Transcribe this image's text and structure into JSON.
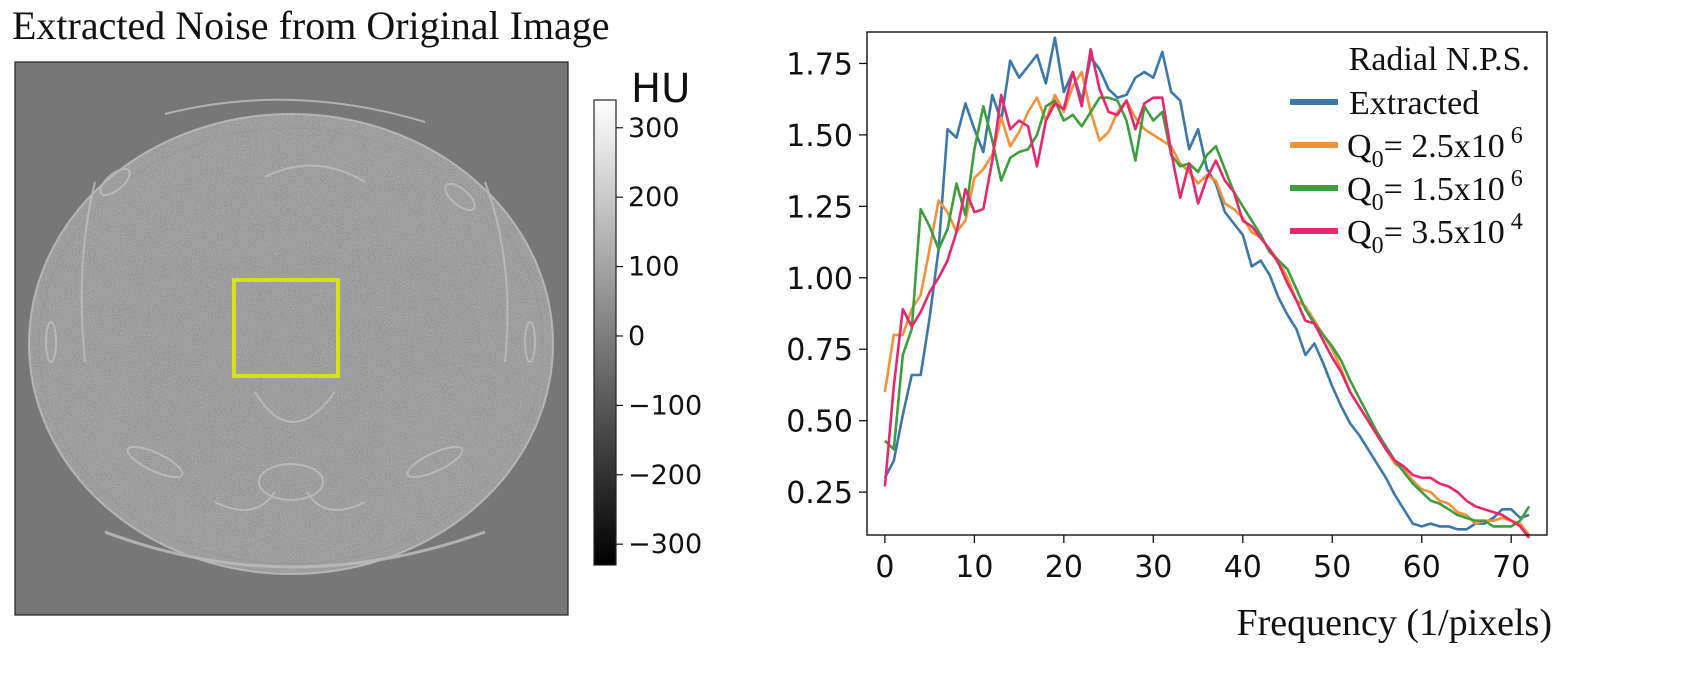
{
  "left_panel": {
    "title": "Extracted Noise from Original Image",
    "colorbar": {
      "unit": "HU",
      "ticks": [
        "300",
        "200",
        "100",
        "0",
        "−100",
        "−200",
        "−300"
      ],
      "tick_values": [
        300,
        200,
        100,
        0,
        -100,
        -200,
        -300
      ],
      "range": [
        -330,
        340
      ]
    },
    "roi_box_color": "#d4e21c",
    "background_color": "#777777"
  },
  "chart_data": {
    "type": "line",
    "title": "",
    "xlabel": "Frequency (1/pixels)",
    "ylabel": "",
    "xlim": [
      -2,
      74
    ],
    "ylim": [
      0.1,
      1.86
    ],
    "x_ticks": [
      0,
      10,
      20,
      30,
      40,
      50,
      60,
      70
    ],
    "y_ticks": [
      0.25,
      0.5,
      0.75,
      1.0,
      1.25,
      1.5,
      1.75
    ],
    "x_tick_labels": [
      "0",
      "10",
      "20",
      "30",
      "40",
      "50",
      "60",
      "70"
    ],
    "y_tick_labels": [
      "0.25",
      "0.50",
      "0.75",
      "1.00",
      "1.25",
      "1.50",
      "1.75"
    ],
    "legend": {
      "title": "Radial N.P.S.",
      "placement": "top-right",
      "entries": [
        {
          "label": "Extracted",
          "base": "",
          "sub": "",
          "sup": "",
          "color": "#3b77a8"
        },
        {
          "label": "",
          "base": "Q",
          "sub": "0",
          "mid": "= 2.5x10",
          "sup": "6",
          "color": "#f39237"
        },
        {
          "label": "",
          "base": "Q",
          "sub": "0",
          "mid": "= 1.5x10",
          "sup": "6",
          "color": "#3d9e3d"
        },
        {
          "label": "",
          "base": "Q",
          "sub": "0",
          "mid": "= 3.5x10",
          "sup": "4",
          "color": "#e8276f"
        }
      ]
    },
    "x": [
      0,
      1,
      2,
      3,
      4,
      5,
      6,
      7,
      8,
      9,
      10,
      11,
      12,
      13,
      14,
      15,
      16,
      17,
      18,
      19,
      20,
      21,
      22,
      23,
      24,
      25,
      26,
      27,
      28,
      29,
      30,
      31,
      32,
      33,
      34,
      35,
      36,
      37,
      38,
      39,
      40,
      41,
      42,
      43,
      44,
      45,
      46,
      47,
      48,
      49,
      50,
      51,
      52,
      53,
      54,
      55,
      56,
      57,
      58,
      59,
      60,
      61,
      62,
      63,
      64,
      65,
      66,
      67,
      68,
      69,
      70,
      71,
      72
    ],
    "series": [
      {
        "name": "Extracted",
        "color": "#3b77a8",
        "values": [
          0.3,
          0.36,
          0.52,
          0.66,
          0.66,
          0.86,
          1.1,
          1.52,
          1.49,
          1.61,
          1.52,
          1.44,
          1.64,
          1.55,
          1.76,
          1.7,
          1.74,
          1.78,
          1.68,
          1.84,
          1.65,
          1.72,
          1.62,
          1.77,
          1.73,
          1.66,
          1.63,
          1.64,
          1.7,
          1.72,
          1.7,
          1.79,
          1.65,
          1.62,
          1.45,
          1.52,
          1.38,
          1.33,
          1.23,
          1.19,
          1.15,
          1.04,
          1.06,
          1.01,
          0.93,
          0.87,
          0.82,
          0.73,
          0.77,
          0.7,
          0.62,
          0.55,
          0.49,
          0.45,
          0.4,
          0.35,
          0.3,
          0.24,
          0.19,
          0.14,
          0.13,
          0.14,
          0.13,
          0.13,
          0.12,
          0.12,
          0.14,
          0.14,
          0.16,
          0.19,
          0.19,
          0.16,
          0.17
        ]
      },
      {
        "name": "Q0= 2.5x10^6",
        "color": "#f39237",
        "values": [
          0.6,
          0.8,
          0.8,
          0.89,
          0.94,
          1.1,
          1.27,
          1.23,
          1.16,
          1.2,
          1.35,
          1.38,
          1.43,
          1.56,
          1.46,
          1.51,
          1.58,
          1.63,
          1.55,
          1.64,
          1.58,
          1.67,
          1.72,
          1.58,
          1.48,
          1.51,
          1.58,
          1.62,
          1.56,
          1.52,
          1.5,
          1.48,
          1.46,
          1.4,
          1.37,
          1.33,
          1.36,
          1.34,
          1.26,
          1.24,
          1.21,
          1.16,
          1.14,
          1.1,
          1.06,
          1.0,
          0.92,
          0.9,
          0.85,
          0.8,
          0.75,
          0.68,
          0.6,
          0.55,
          0.5,
          0.45,
          0.4,
          0.35,
          0.33,
          0.29,
          0.26,
          0.25,
          0.22,
          0.21,
          0.18,
          0.17,
          0.14,
          0.15,
          0.15,
          0.16,
          0.15,
          0.14,
          0.1
        ]
      },
      {
        "name": "Q0= 1.5x10^6",
        "color": "#3d9e3d",
        "values": [
          0.43,
          0.4,
          0.73,
          0.82,
          1.24,
          1.18,
          1.1,
          1.17,
          1.33,
          1.22,
          1.45,
          1.6,
          1.48,
          1.34,
          1.42,
          1.44,
          1.45,
          1.5,
          1.6,
          1.62,
          1.55,
          1.57,
          1.53,
          1.58,
          1.63,
          1.63,
          1.62,
          1.55,
          1.41,
          1.6,
          1.55,
          1.58,
          1.43,
          1.39,
          1.4,
          1.37,
          1.43,
          1.46,
          1.38,
          1.3,
          1.25,
          1.2,
          1.15,
          1.09,
          1.06,
          1.03,
          0.96,
          0.89,
          0.84,
          0.8,
          0.76,
          0.71,
          0.64,
          0.58,
          0.52,
          0.46,
          0.41,
          0.36,
          0.32,
          0.28,
          0.25,
          0.22,
          0.21,
          0.19,
          0.17,
          0.16,
          0.15,
          0.15,
          0.13,
          0.13,
          0.13,
          0.15,
          0.2
        ]
      },
      {
        "name": "Q0= 3.5x10^4",
        "color": "#e8276f",
        "values": [
          0.27,
          0.62,
          0.89,
          0.83,
          0.88,
          0.95,
          1.0,
          1.06,
          1.16,
          1.31,
          1.23,
          1.24,
          1.41,
          1.64,
          1.52,
          1.55,
          1.53,
          1.39,
          1.55,
          1.61,
          1.59,
          1.72,
          1.6,
          1.8,
          1.66,
          1.58,
          1.57,
          1.62,
          1.52,
          1.61,
          1.63,
          1.63,
          1.44,
          1.28,
          1.4,
          1.26,
          1.35,
          1.41,
          1.34,
          1.3,
          1.2,
          1.18,
          1.14,
          1.1,
          1.05,
          0.98,
          0.92,
          0.85,
          0.84,
          0.78,
          0.72,
          0.67,
          0.6,
          0.55,
          0.5,
          0.45,
          0.4,
          0.36,
          0.34,
          0.31,
          0.3,
          0.3,
          0.28,
          0.27,
          0.25,
          0.22,
          0.2,
          0.19,
          0.18,
          0.17,
          0.15,
          0.13,
          0.09
        ]
      }
    ]
  }
}
